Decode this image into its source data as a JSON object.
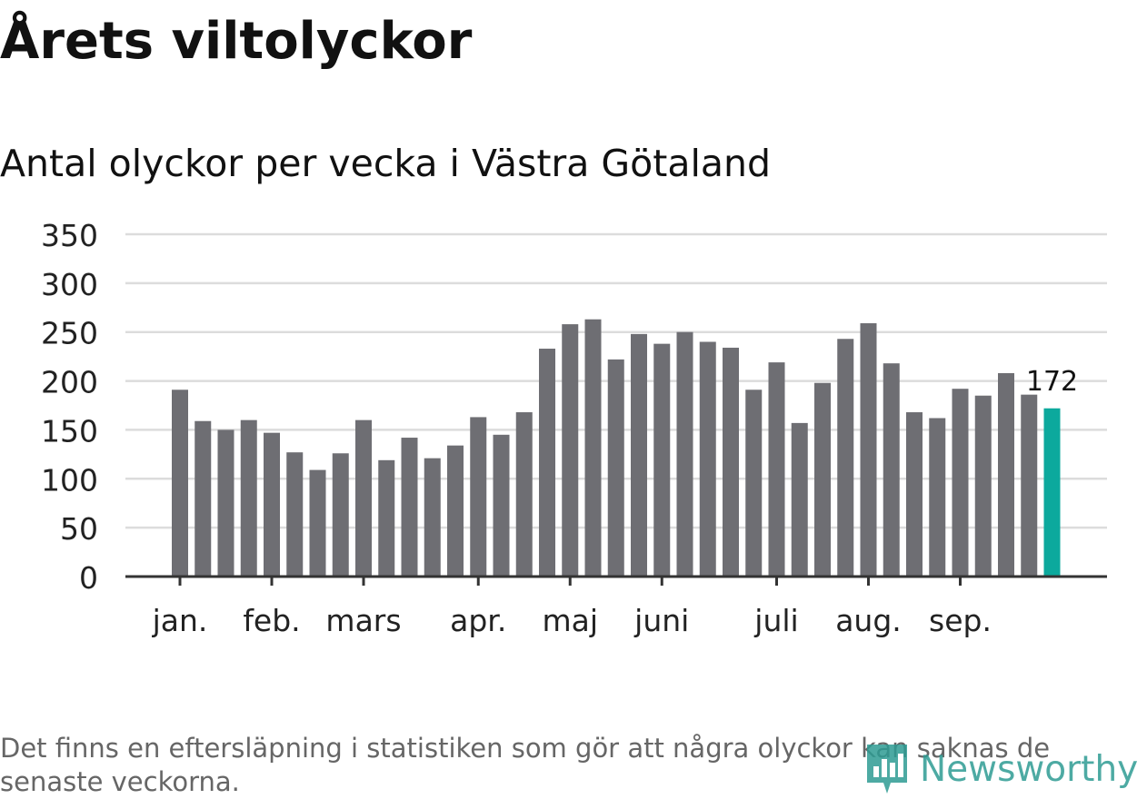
{
  "header": {
    "title": "Årets viltolyckor",
    "subtitle": "Antal olyckor per vecka i Västra Götaland"
  },
  "footnote": "Det finns en eftersläpning i statistiken som gör att några olyckor kan saknas de senaste veckorna.",
  "brand": {
    "name": "Newsworthy",
    "color": "#2e9c93"
  },
  "chart_data": {
    "type": "bar",
    "title": "Årets viltolyckor",
    "subtitle": "Antal olyckor per vecka i Västra Götaland",
    "xlabel": "",
    "ylabel": "",
    "ylim": [
      0,
      350
    ],
    "yticks": [
      0,
      50,
      100,
      150,
      200,
      250,
      300,
      350
    ],
    "grid": true,
    "month_labels": [
      {
        "label": "jan.",
        "week": 1
      },
      {
        "label": "feb.",
        "week": 5
      },
      {
        "label": "mars",
        "week": 9
      },
      {
        "label": "apr.",
        "week": 14
      },
      {
        "label": "maj",
        "week": 18
      },
      {
        "label": "juni",
        "week": 22
      },
      {
        "label": "juli",
        "week": 27
      },
      {
        "label": "aug.",
        "week": 31
      },
      {
        "label": "sep.",
        "week": 35
      }
    ],
    "categories": [
      1,
      2,
      3,
      4,
      5,
      6,
      7,
      8,
      9,
      10,
      11,
      12,
      13,
      14,
      15,
      16,
      17,
      18,
      19,
      20,
      21,
      22,
      23,
      24,
      25,
      26,
      27,
      28,
      29,
      30,
      31,
      32,
      33,
      34,
      35,
      36,
      37,
      38,
      39
    ],
    "values": [
      191,
      159,
      150,
      160,
      147,
      127,
      109,
      126,
      160,
      119,
      142,
      121,
      134,
      163,
      145,
      168,
      233,
      258,
      263,
      222,
      248,
      238,
      250,
      240,
      234,
      191,
      219,
      157,
      198,
      243,
      259,
      218,
      168,
      162,
      192,
      185,
      208,
      186,
      172
    ],
    "bar_color": "#6e6e73",
    "highlight_color": "#0ca99d",
    "highlight": {
      "week": 39,
      "label": "172"
    }
  }
}
